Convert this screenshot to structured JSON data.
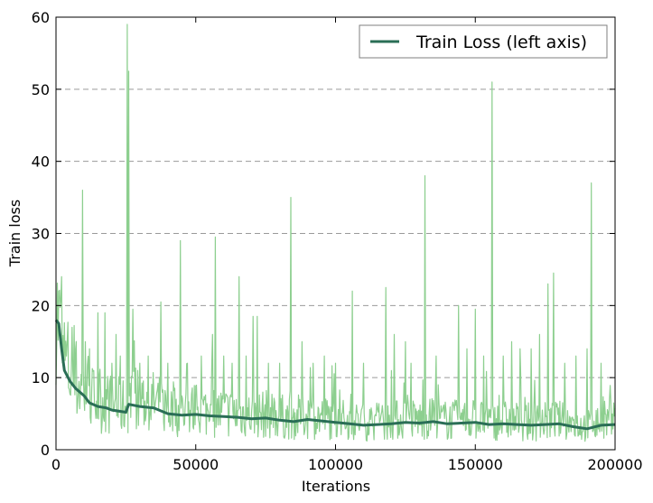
{
  "chart_data": {
    "type": "line",
    "title": "",
    "xlabel": "Iterations",
    "ylabel": "Train loss",
    "xlim": [
      0,
      200000
    ],
    "ylim": [
      0,
      60
    ],
    "x_ticks": [
      0,
      50000,
      100000,
      150000,
      200000
    ],
    "x_tick_labels": [
      "0",
      "50000",
      "100000",
      "150000",
      "200000"
    ],
    "y_ticks": [
      0,
      10,
      20,
      30,
      40,
      50,
      60
    ],
    "y_tick_labels": [
      "0",
      "10",
      "20",
      "30",
      "40",
      "50",
      "60"
    ],
    "grid": "horizontal dashed",
    "legend": {
      "position": "top-right",
      "entries": [
        "Train Loss (left axis)"
      ]
    },
    "colors": {
      "raw": "#8dcf8f",
      "smoothed": "#2a6e56",
      "grid": "#9a9a9a"
    },
    "series": [
      {
        "name": "Train Loss (left axis)",
        "role": "smoothed",
        "x": [
          0,
          1000,
          2000,
          3000,
          5000,
          7000,
          10000,
          12000,
          15000,
          18000,
          20000,
          25000,
          26000,
          30000,
          35000,
          40000,
          45000,
          50000,
          55000,
          60000,
          65000,
          70000,
          75000,
          80000,
          85000,
          90000,
          95000,
          100000,
          105000,
          110000,
          115000,
          120000,
          125000,
          130000,
          135000,
          140000,
          145000,
          150000,
          155000,
          160000,
          165000,
          170000,
          175000,
          180000,
          185000,
          190000,
          195000,
          200000
        ],
        "y": [
          18,
          17.5,
          14,
          11,
          9.5,
          8.5,
          7.5,
          6.5,
          6,
          5.8,
          5.5,
          5.2,
          6.3,
          6.0,
          5.8,
          5.0,
          4.8,
          4.9,
          4.7,
          4.6,
          4.5,
          4.3,
          4.4,
          4.1,
          3.9,
          4.2,
          4.0,
          3.8,
          3.6,
          3.4,
          3.5,
          3.6,
          3.8,
          3.7,
          3.9,
          3.6,
          3.7,
          3.8,
          3.5,
          3.6,
          3.5,
          3.4,
          3.5,
          3.6,
          3.2,
          2.9,
          3.4,
          3.5
        ]
      },
      {
        "role": "raw",
        "spikes": [
          [
            1000,
            22
          ],
          [
            2000,
            24
          ],
          [
            4000,
            15
          ],
          [
            7000,
            14
          ],
          [
            9500,
            36
          ],
          [
            10500,
            15
          ],
          [
            12000,
            14
          ],
          [
            15000,
            19
          ],
          [
            17500,
            19
          ],
          [
            20000,
            12
          ],
          [
            21500,
            16
          ],
          [
            23000,
            13
          ],
          [
            25500,
            59
          ],
          [
            26000,
            52.5
          ],
          [
            27500,
            19.5
          ],
          [
            30000,
            12
          ],
          [
            33000,
            13
          ],
          [
            37500,
            20.5
          ],
          [
            40000,
            12
          ],
          [
            44500,
            29
          ],
          [
            47000,
            12
          ],
          [
            52000,
            13
          ],
          [
            56000,
            16
          ],
          [
            57000,
            29.5
          ],
          [
            60000,
            13
          ],
          [
            63000,
            12
          ],
          [
            65500,
            24
          ],
          [
            68000,
            13
          ],
          [
            70500,
            18.5
          ],
          [
            72000,
            18.5
          ],
          [
            76000,
            12
          ],
          [
            80000,
            12
          ],
          [
            84000,
            35
          ],
          [
            88000,
            15
          ],
          [
            92000,
            12
          ],
          [
            96000,
            13
          ],
          [
            100000,
            12
          ],
          [
            106000,
            22
          ],
          [
            110000,
            12
          ],
          [
            118000,
            22.5
          ],
          [
            121000,
            16
          ],
          [
            125000,
            15
          ],
          [
            127000,
            12
          ],
          [
            132000,
            38
          ],
          [
            136000,
            13
          ],
          [
            144000,
            20
          ],
          [
            147000,
            14
          ],
          [
            150000,
            19.5
          ],
          [
            153000,
            13
          ],
          [
            156000,
            51
          ],
          [
            160000,
            13
          ],
          [
            163000,
            15
          ],
          [
            166000,
            14
          ],
          [
            170000,
            14
          ],
          [
            173000,
            16
          ],
          [
            176000,
            23
          ],
          [
            178000,
            24.5
          ],
          [
            182000,
            12
          ],
          [
            186000,
            13
          ],
          [
            190000,
            14
          ],
          [
            191500,
            37
          ],
          [
            195000,
            12
          ],
          [
            198000,
            7
          ]
        ]
      }
    ]
  }
}
